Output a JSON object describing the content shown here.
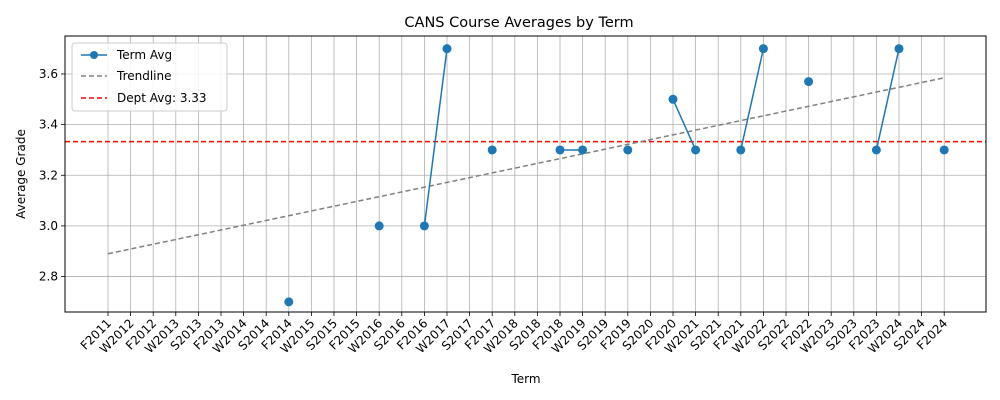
{
  "chart_data": {
    "type": "line",
    "title": "CANS Course Averages by Term",
    "xlabel": "Term",
    "ylabel": "Average Grade",
    "categories": [
      "F2011",
      "W2012",
      "F2012",
      "W2013",
      "S2013",
      "F2013",
      "W2014",
      "S2014",
      "F2014",
      "W2015",
      "S2015",
      "F2015",
      "W2016",
      "S2016",
      "F2016",
      "W2017",
      "S2017",
      "F2017",
      "W2018",
      "S2018",
      "F2018",
      "W2019",
      "S2019",
      "F2019",
      "S2020",
      "F2020",
      "W2021",
      "S2021",
      "F2021",
      "W2022",
      "S2022",
      "F2022",
      "W2023",
      "S2023",
      "F2023",
      "W2024",
      "S2024",
      "F2024"
    ],
    "yticks": [
      2.8,
      3.0,
      3.2,
      3.4,
      3.6
    ],
    "ylim": [
      2.66,
      3.75
    ],
    "grid": true,
    "legend_position": "top-left",
    "series": [
      {
        "name": "Term Avg",
        "color": "#1f77b4",
        "values": [
          null,
          null,
          null,
          null,
          null,
          null,
          null,
          null,
          2.7,
          null,
          null,
          null,
          3.0,
          null,
          3.0,
          3.7,
          null,
          3.3,
          null,
          null,
          3.3,
          3.3,
          null,
          3.3,
          null,
          3.5,
          3.3,
          null,
          3.3,
          3.7,
          null,
          3.57,
          null,
          null,
          3.3,
          3.7,
          null,
          3.3
        ]
      }
    ],
    "trendline": {
      "name": "Trendline",
      "color": "#808080",
      "start": 2.89,
      "end": 3.585
    },
    "reference_line": {
      "name": "Dept Avg: 3.33",
      "value": 3.333,
      "color": "#ff0000"
    }
  }
}
